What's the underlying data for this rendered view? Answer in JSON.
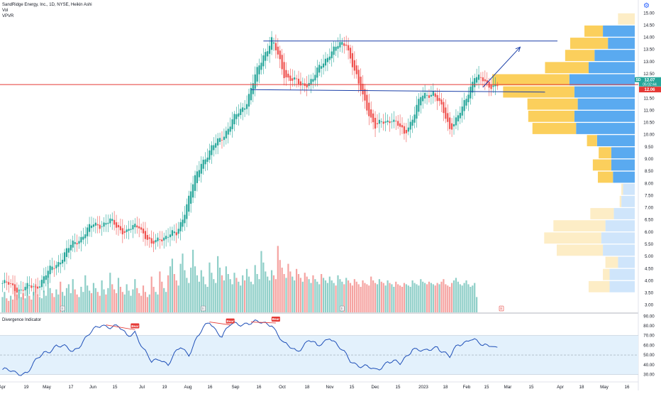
{
  "header": {
    "title": "SandRidge Energy, Inc., 1D, NYSE, Heikin Ashi",
    "vol_label": "Vol",
    "vpvr_label": "VPVR"
  },
  "colors": {
    "up": "#26a69a",
    "down": "#ef5350",
    "vol_up": "#8fcfc8",
    "vol_down": "#f5a3a1",
    "vp_up": "#5aaaf0",
    "vp_down": "#fbcf5c",
    "vp_up_faint": "#cfe5fb",
    "vp_down_faint": "#fdedc6",
    "price_line": "#e53935",
    "trend_line": "#1a3fa8",
    "panel_fill": "#e3f1fc",
    "osc_line": "#1e4fb8",
    "bear": "#e53935"
  },
  "chart_data": [
    {
      "type": "candlestick",
      "name": "main",
      "y_ticks": [
        "15.00",
        "14.50",
        "14.00",
        "13.50",
        "13.00",
        "12.50",
        "12.00",
        "11.50",
        "11.00",
        "10.50",
        "10.00",
        "9.50",
        "9.00",
        "8.50",
        "8.00",
        "7.50",
        "7.00",
        "6.50",
        "6.00",
        "5.50",
        "5.00",
        "4.50",
        "4.00",
        "3.50",
        "3.00"
      ],
      "ylim": [
        2.7,
        15.3
      ],
      "x_ticks": [
        "Apr",
        "19",
        "May",
        "17",
        "Jun",
        "15",
        "Jul",
        "19",
        "Aug",
        "16",
        "Sep",
        "16",
        "Oct",
        "18",
        "Nov",
        "15",
        "Dec",
        "15",
        "2023",
        "18",
        "Feb",
        "15",
        "Mar",
        "15",
        "Apr",
        "18",
        "May",
        "16"
      ],
      "price_labels": [
        {
          "symbol": "SD",
          "value": "12.07",
          "countdown": "05:02:44"
        },
        {
          "value": "12.06"
        }
      ],
      "current_price": 12.06,
      "keypoints": [
        [
          0,
          3.9
        ],
        [
          8,
          3.65
        ],
        [
          16,
          3.75
        ],
        [
          26,
          4.7
        ],
        [
          34,
          5.5
        ],
        [
          44,
          6.3
        ],
        [
          52,
          6.4
        ],
        [
          60,
          6.0
        ],
        [
          66,
          6.3
        ],
        [
          72,
          5.4
        ],
        [
          76,
          5.8
        ],
        [
          84,
          5.9
        ],
        [
          96,
          8.9
        ],
        [
          102,
          9.5
        ],
        [
          110,
          10.4
        ],
        [
          118,
          11.4
        ],
        [
          126,
          13.3
        ],
        [
          130,
          13.9
        ],
        [
          136,
          12.5
        ],
        [
          144,
          12.0
        ],
        [
          150,
          12.3
        ],
        [
          158,
          13.4
        ],
        [
          166,
          13.8
        ],
        [
          172,
          12.0
        ],
        [
          180,
          10.3
        ],
        [
          188,
          10.7
        ],
        [
          194,
          10.0
        ],
        [
          202,
          11.5
        ],
        [
          208,
          11.8
        ],
        [
          216,
          10.3
        ],
        [
          222,
          11.0
        ],
        [
          228,
          12.5
        ],
        [
          234,
          12.0
        ],
        [
          238,
          12.1
        ]
      ],
      "volume": {
        "values": [
          1.2,
          1.6,
          1.1,
          0.9,
          1.3,
          1.0,
          2.1,
          1.4,
          1.8,
          1.2,
          1.5,
          1.1,
          1.9,
          1.3,
          1.0,
          1.6,
          2.2,
          1.4,
          1.2,
          1.1,
          1.7,
          1.3,
          2.8,
          1.9,
          1.5,
          1.2,
          1.8,
          1.4,
          2.4,
          1.6,
          1.3,
          1.9,
          2.2,
          1.5,
          2.6,
          1.8,
          1.4,
          1.2,
          2.0,
          1.6,
          2.9,
          2.1,
          1.7,
          1.5,
          2.3,
          1.9,
          1.6,
          1.3,
          2.5,
          1.8,
          1.4,
          1.9,
          3.1,
          2.2,
          1.8,
          1.5,
          2.7,
          2.0,
          1.6,
          1.4,
          2.2,
          1.7,
          1.3,
          1.8,
          2.6,
          1.9,
          1.5,
          1.3,
          2.1,
          1.6,
          1.2,
          1.4,
          2.8,
          2.0,
          1.6,
          1.4,
          3.2,
          2.4,
          1.9,
          1.6,
          2.9,
          3.6,
          4.2,
          3.0,
          2.5,
          2.1,
          3.8,
          4.6,
          3.3,
          2.7,
          2.3,
          3.5,
          4.9,
          3.6,
          2.9,
          2.4,
          3.3,
          2.8,
          2.2,
          2.0,
          3.9,
          3.1,
          2.6,
          2.3,
          4.4,
          3.5,
          2.9,
          2.5,
          3.6,
          3.0,
          2.6,
          2.2,
          3.1,
          2.7,
          2.4,
          2.1,
          2.9,
          2.5,
          3.4,
          2.8,
          2.4,
          2.2,
          3.7,
          3.0,
          2.6,
          4.8,
          3.9,
          3.2,
          2.8,
          2.5,
          3.3,
          2.9,
          2.6,
          5.2,
          4.1,
          3.5,
          3.0,
          2.7,
          3.8,
          3.2,
          2.8,
          2.5,
          3.4,
          3.0,
          2.7,
          2.4,
          3.1,
          2.8,
          2.6,
          2.3,
          2.9,
          2.6,
          2.4,
          2.2,
          3.0,
          2.7,
          2.5,
          2.3,
          2.8,
          2.5,
          2.3,
          2.1,
          2.9,
          2.6,
          2.4,
          2.2,
          2.7,
          2.5,
          2.3,
          2.1,
          2.6,
          2.4,
          2.2,
          2.0,
          2.5,
          2.3,
          2.2,
          2.1,
          2.8,
          2.5,
          2.3,
          2.2,
          2.6,
          2.4,
          2.3,
          2.1,
          2.5,
          2.3,
          2.2,
          2.0,
          2.4,
          2.2,
          2.1,
          2.0,
          2.3,
          2.2,
          2.1,
          2.0,
          2.5,
          2.3,
          2.2,
          2.1,
          2.6,
          2.4,
          2.3,
          2.2,
          2.4,
          2.3,
          2.2,
          2.1,
          2.3,
          2.2,
          2.4,
          2.6,
          2.2,
          2.1,
          2.0,
          2.3,
          2.5,
          2.7,
          2.4,
          2.2,
          2.1,
          2.3,
          2.5,
          2.2,
          2.0,
          2.1,
          2.3,
          1.2
        ]
      },
      "volume_profile": [
        {
          "price": 14.5,
          "up": 0.0,
          "down": 0.2,
          "faint": true
        },
        {
          "price": 14.0,
          "up": 0.38,
          "down": 0.22,
          "faint": false
        },
        {
          "price": 13.5,
          "up": 0.32,
          "down": 0.45,
          "faint": false
        },
        {
          "price": 13.0,
          "up": 0.48,
          "down": 0.35,
          "faint": false
        },
        {
          "price": 12.5,
          "up": 0.55,
          "down": 0.52,
          "faint": false
        },
        {
          "price": 12.0,
          "up": 0.78,
          "down": 0.92,
          "faint": false
        },
        {
          "price": 11.5,
          "up": 0.72,
          "down": 0.85,
          "faint": false
        },
        {
          "price": 11.0,
          "up": 0.68,
          "down": 0.6,
          "faint": false
        },
        {
          "price": 10.5,
          "up": 0.72,
          "down": 0.55,
          "faint": false
        },
        {
          "price": 10.0,
          "up": 0.7,
          "down": 0.52,
          "faint": false
        },
        {
          "price": 9.5,
          "up": 0.45,
          "down": 0.12,
          "faint": false
        },
        {
          "price": 9.0,
          "up": 0.28,
          "down": 0.15,
          "faint": false
        },
        {
          "price": 8.5,
          "up": 0.28,
          "down": 0.22,
          "faint": false
        },
        {
          "price": 8.0,
          "up": 0.26,
          "down": 0.18,
          "faint": false
        },
        {
          "price": 7.5,
          "up": 0.14,
          "down": 0.02,
          "faint": true
        },
        {
          "price": 7.0,
          "up": 0.16,
          "down": 0.02,
          "faint": true
        },
        {
          "price": 6.5,
          "up": 0.25,
          "down": 0.28,
          "faint": true
        },
        {
          "price": 6.0,
          "up": 0.35,
          "down": 0.62,
          "faint": true
        },
        {
          "price": 5.5,
          "up": 0.4,
          "down": 0.68,
          "faint": true
        },
        {
          "price": 5.0,
          "up": 0.38,
          "down": 0.55,
          "faint": true
        },
        {
          "price": 4.5,
          "up": 0.2,
          "down": 0.15,
          "faint": true
        },
        {
          "price": 4.0,
          "up": 0.3,
          "down": 0.08,
          "faint": true
        },
        {
          "price": 3.5,
          "up": 0.3,
          "down": 0.25,
          "faint": true
        }
      ],
      "event_markers": [
        "E",
        "E",
        "E",
        "E"
      ],
      "trend_lines": [
        {
          "from": [
            126,
            13.85
          ],
          "to": [
            268,
            13.85
          ]
        },
        {
          "from": [
            120,
            11.85
          ],
          "to": [
            262,
            11.75
          ]
        },
        {
          "from": [
            232,
            11.95
          ],
          "to": [
            250,
            13.6
          ],
          "arrow": true
        }
      ]
    },
    {
      "type": "line",
      "name": "Divergence Indicator",
      "y_ticks": [
        "90.00",
        "80.00",
        "70.00",
        "60.00",
        "50.00",
        "40.00",
        "30.00"
      ],
      "ylim": [
        23,
        91
      ],
      "band": [
        30,
        70
      ],
      "midline": 50,
      "keypoints": [
        [
          0,
          35
        ],
        [
          6,
          31
        ],
        [
          12,
          33
        ],
        [
          20,
          52
        ],
        [
          26,
          60
        ],
        [
          34,
          54
        ],
        [
          40,
          67
        ],
        [
          48,
          82
        ],
        [
          52,
          80
        ],
        [
          56,
          78
        ],
        [
          60,
          70
        ],
        [
          64,
          75
        ],
        [
          68,
          55
        ],
        [
          72,
          42
        ],
        [
          76,
          48
        ],
        [
          80,
          40
        ],
        [
          86,
          58
        ],
        [
          90,
          52
        ],
        [
          94,
          68
        ],
        [
          100,
          84
        ],
        [
          106,
          70
        ],
        [
          110,
          80
        ],
        [
          118,
          84
        ],
        [
          126,
          82
        ],
        [
          130,
          83
        ],
        [
          136,
          60
        ],
        [
          142,
          55
        ],
        [
          148,
          65
        ],
        [
          152,
          58
        ],
        [
          158,
          70
        ],
        [
          162,
          58
        ],
        [
          168,
          45
        ],
        [
          174,
          38
        ],
        [
          180,
          34
        ],
        [
          186,
          44
        ],
        [
          192,
          40
        ],
        [
          198,
          58
        ],
        [
          204,
          52
        ],
        [
          210,
          60
        ],
        [
          216,
          47
        ],
        [
          220,
          60
        ],
        [
          226,
          68
        ],
        [
          232,
          58
        ],
        [
          236,
          62
        ],
        [
          238,
          59
        ]
      ],
      "bear_labels": [
        {
          "text": "Bear",
          "at": [
            64,
            76
          ],
          "from": [
            50,
            81
          ]
        },
        {
          "text": "Bear",
          "at": [
            110,
            81
          ],
          "from": [
            100,
            84
          ]
        },
        {
          "text": "Bear",
          "at": [
            132,
            83
          ],
          "from": [
            120,
            84
          ]
        }
      ]
    }
  ]
}
